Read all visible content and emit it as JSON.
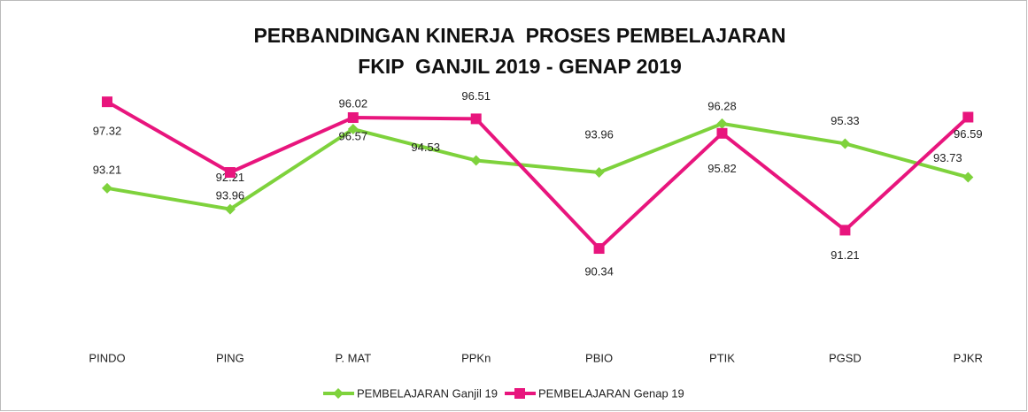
{
  "chart_data": {
    "type": "line",
    "title": "PERBANDINGAN KINERJA  PROSES PEMBELAJARAN",
    "subtitle": "FKIP  GANJIL 2019 - GENAP 2019",
    "categories": [
      "PINDO",
      "PING",
      "P. MAT",
      "PPKn",
      "PBIO",
      "PTIK",
      "PGSD",
      "PJKR"
    ],
    "series": [
      {
        "name": "PEMBELAJARAN Ganjil 19",
        "color": "#7ed23c",
        "marker": "diamond",
        "values": [
          93.21,
          92.21,
          96.02,
          94.53,
          93.96,
          96.28,
          95.33,
          93.73
        ]
      },
      {
        "name": "PEMBELAJARAN Genap 19",
        "color": "#e8157d",
        "marker": "square",
        "values": [
          97.32,
          93.96,
          96.57,
          96.51,
          90.34,
          95.82,
          91.21,
          96.59
        ]
      }
    ],
    "ylim": [
      89.5,
      98
    ],
    "legend": "bottom"
  }
}
